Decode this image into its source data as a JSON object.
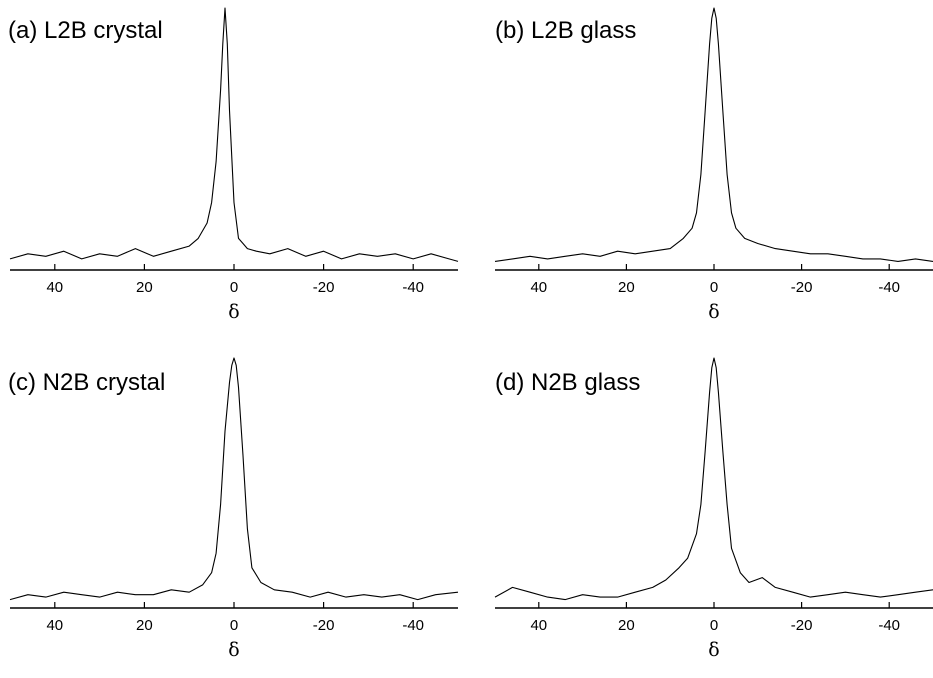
{
  "chart_data": [
    {
      "type": "line",
      "title": "(a) L2B crystal",
      "xlabel": "δ",
      "xlim": [
        50,
        -50
      ],
      "xticks": [
        40,
        20,
        0,
        -20,
        -40
      ],
      "xtick_labels": [
        "40",
        "20",
        "0",
        "-20",
        "-40"
      ],
      "grid": false,
      "peak": {
        "x": 2,
        "height": 1.0
      },
      "x": [
        50,
        46,
        42,
        38,
        34,
        30,
        26,
        22,
        18,
        14,
        10,
        8,
        6,
        5,
        4,
        3,
        2.5,
        2,
        1.5,
        1,
        0,
        -1,
        -2,
        -3,
        -5,
        -8,
        -12,
        -16,
        -20,
        -24,
        -28,
        -32,
        -36,
        -40,
        -44,
        -48,
        -50
      ],
      "y": [
        0.02,
        0.04,
        0.03,
        0.05,
        0.02,
        0.04,
        0.03,
        0.06,
        0.03,
        0.05,
        0.07,
        0.1,
        0.16,
        0.24,
        0.4,
        0.68,
        0.86,
        1.0,
        0.86,
        0.6,
        0.24,
        0.1,
        0.08,
        0.06,
        0.05,
        0.04,
        0.06,
        0.03,
        0.05,
        0.02,
        0.04,
        0.03,
        0.04,
        0.02,
        0.04,
        0.02,
        0.01
      ]
    },
    {
      "type": "line",
      "title": "(b) L2B glass",
      "xlabel": "δ",
      "xlim": [
        50,
        -50
      ],
      "xticks": [
        40,
        20,
        0,
        -20,
        -40
      ],
      "xtick_labels": [
        "40",
        "20",
        "0",
        "-20",
        "-40"
      ],
      "grid": false,
      "peak": {
        "x": 0,
        "height": 1.0
      },
      "x": [
        50,
        46,
        42,
        38,
        34,
        30,
        26,
        22,
        18,
        14,
        10,
        7,
        5,
        4,
        3,
        2,
        1,
        0.5,
        0,
        -0.5,
        -1,
        -2,
        -3,
        -4,
        -5,
        -7,
        -10,
        -14,
        -18,
        -22,
        -26,
        -30,
        -34,
        -38,
        -42,
        -46,
        -50
      ],
      "y": [
        0.01,
        0.02,
        0.03,
        0.02,
        0.03,
        0.04,
        0.03,
        0.05,
        0.04,
        0.05,
        0.06,
        0.1,
        0.14,
        0.2,
        0.35,
        0.6,
        0.86,
        0.96,
        1.0,
        0.96,
        0.86,
        0.6,
        0.35,
        0.2,
        0.14,
        0.1,
        0.08,
        0.06,
        0.05,
        0.04,
        0.04,
        0.03,
        0.02,
        0.02,
        0.01,
        0.02,
        0.01
      ]
    },
    {
      "type": "line",
      "title": "(c) N2B crystal",
      "xlabel": "δ",
      "xlim": [
        50,
        -50
      ],
      "xticks": [
        40,
        20,
        0,
        -20,
        -40
      ],
      "xtick_labels": [
        "40",
        "20",
        "0",
        "-20",
        "-40"
      ],
      "grid": false,
      "peak": {
        "x": 0,
        "height": 1.0
      },
      "x": [
        50,
        46,
        42,
        38,
        34,
        30,
        26,
        22,
        18,
        14,
        10,
        7,
        5,
        4,
        3,
        2,
        1,
        0.5,
        0,
        -0.5,
        -1,
        -2,
        -3,
        -4,
        -6,
        -9,
        -13,
        -17,
        -21,
        -25,
        -29,
        -33,
        -37,
        -41,
        -45,
        -50
      ],
      "y": [
        0.01,
        0.03,
        0.02,
        0.04,
        0.03,
        0.02,
        0.04,
        0.03,
        0.03,
        0.05,
        0.04,
        0.07,
        0.12,
        0.2,
        0.4,
        0.7,
        0.9,
        0.97,
        1.0,
        0.97,
        0.88,
        0.6,
        0.3,
        0.14,
        0.08,
        0.05,
        0.04,
        0.02,
        0.04,
        0.02,
        0.03,
        0.02,
        0.03,
        0.01,
        0.03,
        0.04
      ]
    },
    {
      "type": "line",
      "title": "(d) N2B glass",
      "xlabel": "δ",
      "xlim": [
        50,
        -50
      ],
      "xticks": [
        40,
        20,
        0,
        -20,
        -40
      ],
      "xtick_labels": [
        "40",
        "20",
        "0",
        "-20",
        "-40"
      ],
      "grid": false,
      "peak": {
        "x": 0,
        "height": 1.0
      },
      "x": [
        50,
        46,
        42,
        38,
        34,
        30,
        26,
        22,
        18,
        14,
        11,
        8,
        6,
        4,
        3,
        2,
        1,
        0.5,
        0,
        -0.5,
        -1,
        -2,
        -3,
        -4,
        -6,
        -8,
        -11,
        -14,
        -18,
        -22,
        -26,
        -30,
        -34,
        -38,
        -42,
        -46,
        -50
      ],
      "y": [
        0.02,
        0.06,
        0.04,
        0.02,
        0.01,
        0.03,
        0.02,
        0.02,
        0.04,
        0.06,
        0.09,
        0.14,
        0.18,
        0.28,
        0.4,
        0.62,
        0.86,
        0.96,
        1.0,
        0.96,
        0.86,
        0.62,
        0.4,
        0.22,
        0.12,
        0.08,
        0.1,
        0.06,
        0.04,
        0.02,
        0.03,
        0.04,
        0.03,
        0.02,
        0.03,
        0.04,
        0.05
      ]
    }
  ]
}
